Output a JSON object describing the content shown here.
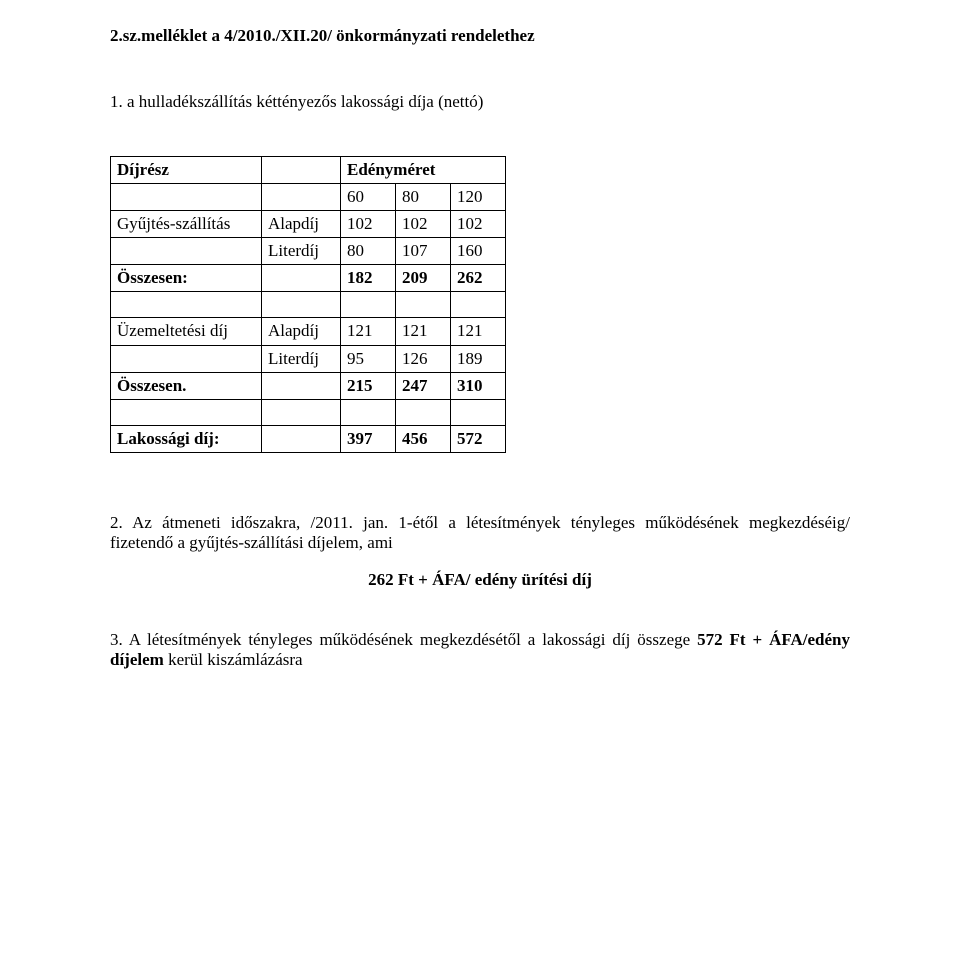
{
  "title": "2.sz.melléklet a 4/2010./XII.20/ önkormányzati rendelethez",
  "section1_intro": "1. a hulladékszállítás kéttényezős lakossági díja (nettó)",
  "table": {
    "col_labels": {
      "dijresz": "Díjrész",
      "edenymeret": "Edényméret"
    },
    "size_cols": [
      "60",
      "80",
      "120"
    ],
    "rows": [
      {
        "label": "Gyűjtés-szállítás",
        "sub": "Alapdíj",
        "v": [
          "102",
          "102",
          "102"
        ],
        "bold": false
      },
      {
        "label": "",
        "sub": "Literdíj",
        "v": [
          "80",
          "107",
          "160"
        ],
        "bold": false
      },
      {
        "label": "Összesen:",
        "sub": "",
        "v": [
          "182",
          "209",
          "262"
        ],
        "bold": true
      },
      {
        "label": "",
        "sub": "",
        "v": [
          "",
          "",
          ""
        ],
        "bold": false
      },
      {
        "label": "Üzemeltetési díj",
        "sub": "Alapdíj",
        "v": [
          "121",
          "121",
          "121"
        ],
        "bold": false
      },
      {
        "label": "",
        "sub": "Literdíj",
        "v": [
          "95",
          "126",
          "189"
        ],
        "bold": false
      },
      {
        "label": "Összesen.",
        "sub": "",
        "v": [
          "215",
          "247",
          "310"
        ],
        "bold": true
      },
      {
        "label": "",
        "sub": "",
        "v": [
          "",
          "",
          ""
        ],
        "bold": false
      },
      {
        "label": "Lakossági díj:",
        "sub": "",
        "v": [
          "397",
          "456",
          "572"
        ],
        "bold": true
      }
    ]
  },
  "section2": "2. Az átmeneti időszakra, /2011. jan. 1-étől a létesítmények tényleges működésének megkezdéséig/ fizetendő a gyűjtés-szállítási díjelem, ami",
  "section2_fee": "262 Ft + ÁFA/ edény ürítési díj",
  "section3_a": "3. A létesítmények tényleges működésének megkezdésétől a lakossági díj összege",
  "section3_b": "572 Ft + ÁFA/edény díjelem",
  "section3_c": " kerül kiszámlázásra"
}
